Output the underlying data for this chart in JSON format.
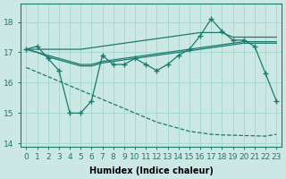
{
  "xlabel": "Humidex (Indice chaleur)",
  "x": [
    0,
    1,
    2,
    3,
    4,
    5,
    6,
    7,
    8,
    9,
    10,
    11,
    12,
    13,
    14,
    15,
    16,
    17,
    18,
    19,
    20,
    21,
    22,
    23
  ],
  "main_line": [
    17.1,
    17.2,
    16.8,
    16.4,
    15.0,
    15.0,
    15.4,
    16.9,
    16.6,
    16.6,
    16.8,
    16.6,
    16.4,
    16.6,
    16.9,
    17.1,
    17.55,
    18.1,
    17.7,
    17.4,
    17.4,
    17.2,
    16.3,
    15.4
  ],
  "upper_tri": [
    17.1,
    17.1,
    17.1,
    17.1,
    17.1,
    17.1,
    17.15,
    17.2,
    17.25,
    17.3,
    17.35,
    17.4,
    17.45,
    17.5,
    17.55,
    17.6,
    17.65,
    17.65,
    17.65,
    17.5,
    17.5,
    17.5,
    17.5,
    17.5
  ],
  "lower_tri": [
    16.5,
    16.35,
    16.2,
    16.05,
    15.9,
    15.75,
    15.6,
    15.45,
    15.3,
    15.15,
    15.0,
    14.85,
    14.7,
    14.6,
    14.5,
    14.4,
    14.35,
    14.3,
    14.28,
    14.27,
    14.26,
    14.25,
    14.24,
    14.3
  ],
  "avg_line1": [
    17.1,
    17.0,
    16.85,
    16.75,
    16.65,
    16.55,
    16.55,
    16.65,
    16.7,
    16.75,
    16.8,
    16.85,
    16.9,
    16.95,
    17.0,
    17.05,
    17.1,
    17.15,
    17.2,
    17.25,
    17.3,
    17.3,
    17.3,
    17.3
  ],
  "avg_line2": [
    17.1,
    17.0,
    16.9,
    16.8,
    16.7,
    16.6,
    16.6,
    16.7,
    16.75,
    16.8,
    16.85,
    16.9,
    16.95,
    17.0,
    17.05,
    17.1,
    17.15,
    17.2,
    17.25,
    17.3,
    17.35,
    17.35,
    17.35,
    17.35
  ],
  "color": "#1a7a6e",
  "bg_color": "#cce8e4",
  "grid_color": "#a8d8d0",
  "xlim": [
    -0.5,
    23.5
  ],
  "ylim": [
    13.9,
    18.6
  ],
  "yticks": [
    14,
    15,
    16,
    17,
    18
  ],
  "xticks": [
    0,
    1,
    2,
    3,
    4,
    5,
    6,
    7,
    8,
    9,
    10,
    11,
    12,
    13,
    14,
    15,
    16,
    17,
    18,
    19,
    20,
    21,
    22,
    23
  ],
  "xlabel_fontsize": 7,
  "tick_fontsize": 6.5
}
